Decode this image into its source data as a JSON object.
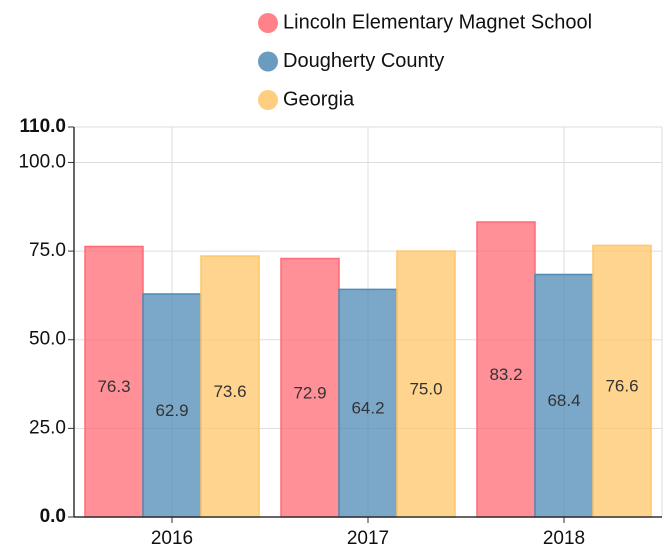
{
  "chart_data": {
    "type": "bar",
    "categories": [
      "2016",
      "2017",
      "2018"
    ],
    "series": [
      {
        "name": "Lincoln Elementary Magnet School",
        "color": "#ff6b76",
        "values": [
          76.3,
          72.9,
          83.2
        ]
      },
      {
        "name": "Dougherty County",
        "color": "#4f8bb5",
        "values": [
          62.9,
          64.2,
          68.4
        ]
      },
      {
        "name": "Georgia",
        "color": "#ffc66a",
        "values": [
          73.6,
          75.0,
          76.6
        ]
      }
    ],
    "value_labels": [
      [
        "76.3",
        "72.9",
        "83.2"
      ],
      [
        "62.9",
        "64.2",
        "68.4"
      ],
      [
        "73.6",
        "75.0",
        "76.6"
      ]
    ],
    "ylim": [
      0,
      110
    ],
    "yticks": [
      {
        "value": 0,
        "label": "0.0"
      },
      {
        "value": 25,
        "label": "25.0"
      },
      {
        "value": 50,
        "label": "50.0"
      },
      {
        "value": 75,
        "label": "75.0"
      },
      {
        "value": 100,
        "label": "100.0"
      },
      {
        "value": 110,
        "label": "110.0"
      }
    ],
    "grid": true
  }
}
